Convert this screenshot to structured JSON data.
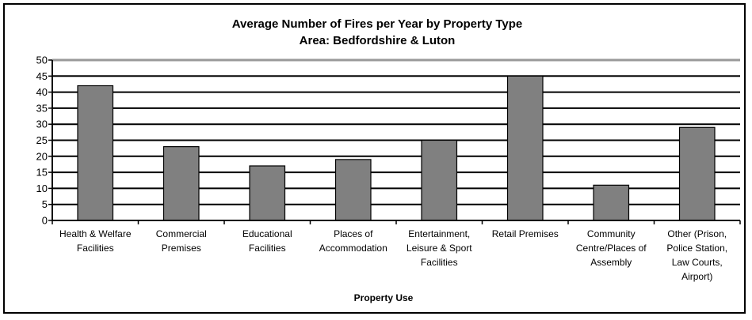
{
  "chart_data": {
    "type": "bar",
    "title": "Average Number of Fires per Year by Property Type",
    "subtitle": "Area: Bedfordshire & Luton",
    "xlabel": "Property Use",
    "ylabel": "",
    "ylim": [
      0,
      50
    ],
    "yticks": [
      0,
      5,
      10,
      15,
      20,
      25,
      30,
      35,
      40,
      45,
      50
    ],
    "grid": true,
    "legend": "none",
    "bar_color": "#808080",
    "categories": [
      [
        "Health & Welfare",
        "Facilities"
      ],
      [
        "Commercial",
        "Premises"
      ],
      [
        "Educational",
        "Facilities"
      ],
      [
        "Places of",
        "Accommodation"
      ],
      [
        "Entertainment,",
        "Leisure & Sport",
        "Facilities"
      ],
      [
        "Retail Premises"
      ],
      [
        "Community",
        "Centre/Places of",
        "Assembly"
      ],
      [
        "Other (Prison,",
        "Police Station,",
        "Law Courts,",
        "Airport)"
      ]
    ],
    "values": [
      42,
      23,
      17,
      19,
      25,
      45,
      11,
      29
    ]
  }
}
